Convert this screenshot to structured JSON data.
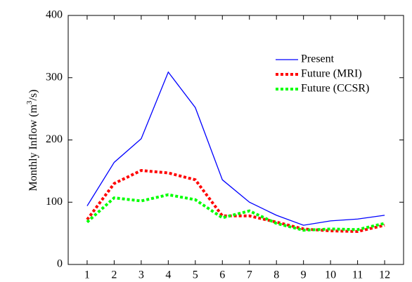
{
  "chart_data": {
    "type": "line",
    "y_label": {
      "text": "Monthly Inflow (m",
      "sup": "3",
      "tail": "/s)"
    },
    "x": [
      1,
      2,
      3,
      4,
      5,
      6,
      7,
      8,
      9,
      10,
      11,
      12
    ],
    "xlim": [
      0.3,
      12.7
    ],
    "xticks": [
      1,
      2,
      3,
      4,
      5,
      6,
      7,
      8,
      9,
      10,
      11,
      12
    ],
    "ylim": [
      0,
      400
    ],
    "yticks": [
      0,
      100,
      200,
      300,
      400
    ],
    "legend": "upper-right",
    "series": [
      {
        "name": "Present",
        "color": "#0000ff",
        "dash": "solid",
        "values": [
          94,
          164,
          202,
          309,
          252,
          136,
          100,
          79,
          63,
          70,
          73,
          79
        ]
      },
      {
        "name": "Future (MRI)",
        "color": "#ff0000",
        "dash": "dotted",
        "values": [
          72,
          130,
          151,
          147,
          136,
          78,
          78,
          68,
          57,
          54,
          53,
          63
        ]
      },
      {
        "name": "Future (CCSR)",
        "color": "#00ff00",
        "dash": "dotted",
        "values": [
          68,
          107,
          102,
          112,
          104,
          75,
          86,
          66,
          55,
          57,
          56,
          66
        ]
      }
    ]
  }
}
